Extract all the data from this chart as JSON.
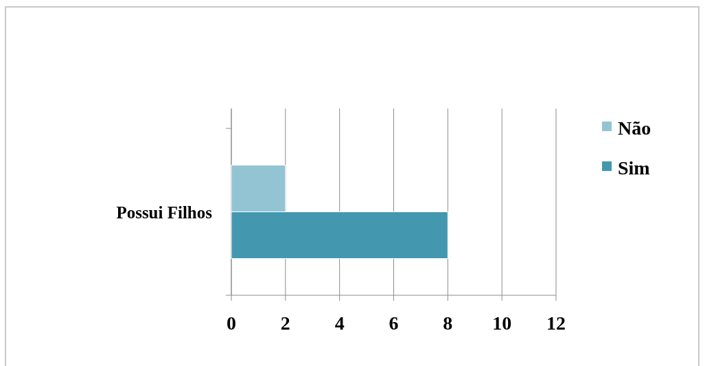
{
  "chart_data": {
    "type": "bar",
    "orientation": "horizontal",
    "categories": [
      "Possui Filhos"
    ],
    "series": [
      {
        "name": "Não",
        "color": "#93c4d4",
        "values": [
          2
        ]
      },
      {
        "name": "Sim",
        "color": "#4398b0",
        "values": [
          8
        ]
      }
    ],
    "xlim": [
      0,
      12
    ],
    "xticks": [
      0,
      2,
      4,
      6,
      8,
      10,
      12
    ],
    "grid": "x",
    "legend": "right"
  }
}
